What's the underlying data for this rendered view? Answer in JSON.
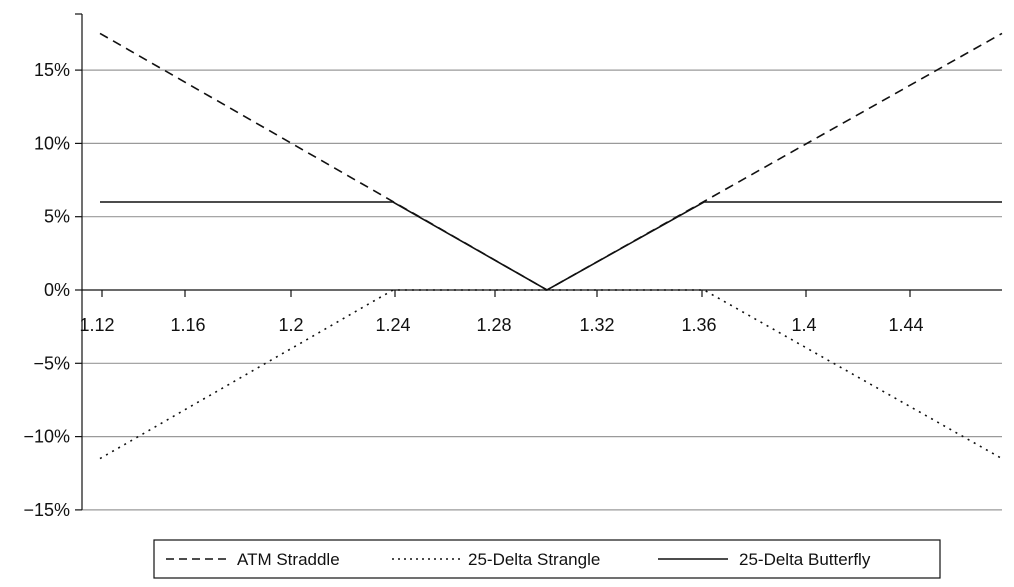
{
  "chart_data": {
    "type": "line",
    "title": "",
    "xlabel": "",
    "ylabel": "",
    "x_ticks": [
      "1.12",
      "1.16",
      "1.2",
      "1.24",
      "1.28",
      "1.32",
      "1.36",
      "1.4",
      "1.44"
    ],
    "y_ticks": [
      "15%",
      "10%",
      "5%",
      "0%",
      "−5%",
      "−10%",
      "−15%"
    ],
    "y_tick_values": [
      15,
      10,
      5,
      0,
      -5,
      -10,
      -15
    ],
    "xlim": [
      1.12,
      1.48
    ],
    "ylim": [
      -15,
      20
    ],
    "grid": "horizontal",
    "legend_position": "bottom",
    "series": [
      {
        "name": "ATM Straddle",
        "style": "dashed",
        "color": "#111111",
        "x": [
          1.12,
          1.3,
          1.48
        ],
        "y": [
          17.5,
          0,
          17.5
        ]
      },
      {
        "name": "25-Delta Strangle",
        "style": "dotted",
        "color": "#111111",
        "x": [
          1.12,
          1.24,
          1.36,
          1.48
        ],
        "y": [
          -11.5,
          0,
          0,
          -11.5
        ]
      },
      {
        "name": "25-Delta Butterfly",
        "style": "solid",
        "color": "#111111",
        "x": [
          1.12,
          1.24,
          1.3,
          1.36,
          1.48
        ],
        "y": [
          6,
          6,
          0,
          6,
          6
        ]
      }
    ]
  }
}
